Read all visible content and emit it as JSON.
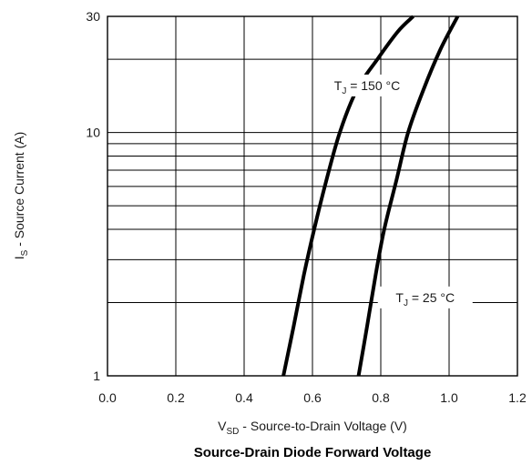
{
  "chart_data": {
    "type": "line",
    "title": "Source-Drain Diode Forward Voltage",
    "xlabel": {
      "prefix": "V",
      "sub": "SD",
      "rest": " - Source-to-Drain Voltage (V)"
    },
    "ylabel": {
      "prefix": "I",
      "sub": "S",
      "rest": " - Source Current (A)"
    },
    "xlim": [
      0.0,
      1.2
    ],
    "ylim": [
      1,
      30
    ],
    "yscale": "log",
    "grid": true,
    "x_ticks": [
      "0.0",
      "0.2",
      "0.4",
      "0.6",
      "0.8",
      "1.0",
      "1.2"
    ],
    "y_ticks": [
      {
        "value": 1,
        "label": "1"
      },
      {
        "value": 10,
        "label": "10"
      },
      {
        "value": 30,
        "label": "30"
      }
    ],
    "series": [
      {
        "annotation": {
          "prefix": "T",
          "sub": "J",
          "rest": " = 150 °C"
        },
        "color": "#000000",
        "x": [
          0.515,
          0.545,
          0.575,
          0.605,
          0.64,
          0.68,
          0.73,
          0.79,
          0.85,
          0.895
        ],
        "y": [
          1.0,
          1.6,
          2.6,
          4.0,
          6.3,
          10.0,
          15.0,
          20.0,
          26.0,
          30.0
        ]
      },
      {
        "annotation": {
          "prefix": "T",
          "sub": "J",
          "rest": " = 25 °C"
        },
        "color": "#000000",
        "x": [
          0.735,
          0.76,
          0.785,
          0.81,
          0.845,
          0.88,
          0.925,
          0.975,
          1.025
        ],
        "y": [
          1.0,
          1.6,
          2.6,
          4.0,
          6.3,
          10.0,
          15.0,
          22.0,
          30.0
        ]
      }
    ],
    "annotation_position": [
      {
        "x": 0.76,
        "y": 15.6
      },
      {
        "x": 0.93,
        "y": 2.1
      }
    ]
  }
}
